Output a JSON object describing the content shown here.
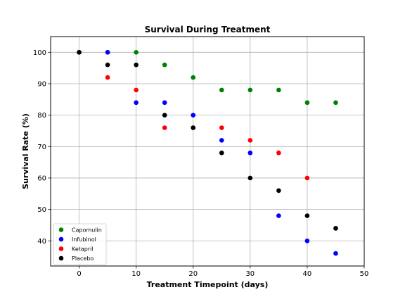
{
  "chart_data": {
    "type": "scatter",
    "title": "Survival During Treatment",
    "xlabel": "Treatment Timepoint (days)",
    "ylabel": "Survival Rate (%)",
    "xlim": [
      -5,
      50
    ],
    "ylim": [
      32,
      105
    ],
    "xticks": [
      0,
      10,
      20,
      30,
      40,
      50
    ],
    "yticks": [
      40,
      50,
      60,
      70,
      80,
      90,
      100
    ],
    "grid": true,
    "legend_position": "lower-left",
    "series": [
      {
        "name": "Capomulin",
        "color": "#008000",
        "x": [
          0,
          5,
          10,
          15,
          20,
          25,
          30,
          35,
          40,
          45
        ],
        "y": [
          100,
          100,
          100,
          96,
          92,
          88,
          88,
          88,
          84,
          84
        ]
      },
      {
        "name": "Infubinol",
        "color": "#0000ff",
        "x": [
          0,
          5,
          10,
          15,
          20,
          25,
          30,
          35,
          40,
          45
        ],
        "y": [
          100,
          100,
          84,
          84,
          80,
          72,
          68,
          48,
          40,
          36
        ]
      },
      {
        "name": "Ketapril",
        "color": "#ff0000",
        "x": [
          0,
          5,
          10,
          15,
          20,
          25,
          30,
          35,
          40,
          45
        ],
        "y": [
          100,
          92,
          88,
          76,
          76,
          76,
          72,
          68,
          60,
          44
        ]
      },
      {
        "name": "Placebo",
        "color": "#000000",
        "x": [
          0,
          5,
          10,
          15,
          20,
          25,
          30,
          35,
          40,
          45
        ],
        "y": [
          100,
          96,
          96,
          80,
          76,
          68,
          60,
          56,
          48,
          44
        ]
      }
    ]
  }
}
